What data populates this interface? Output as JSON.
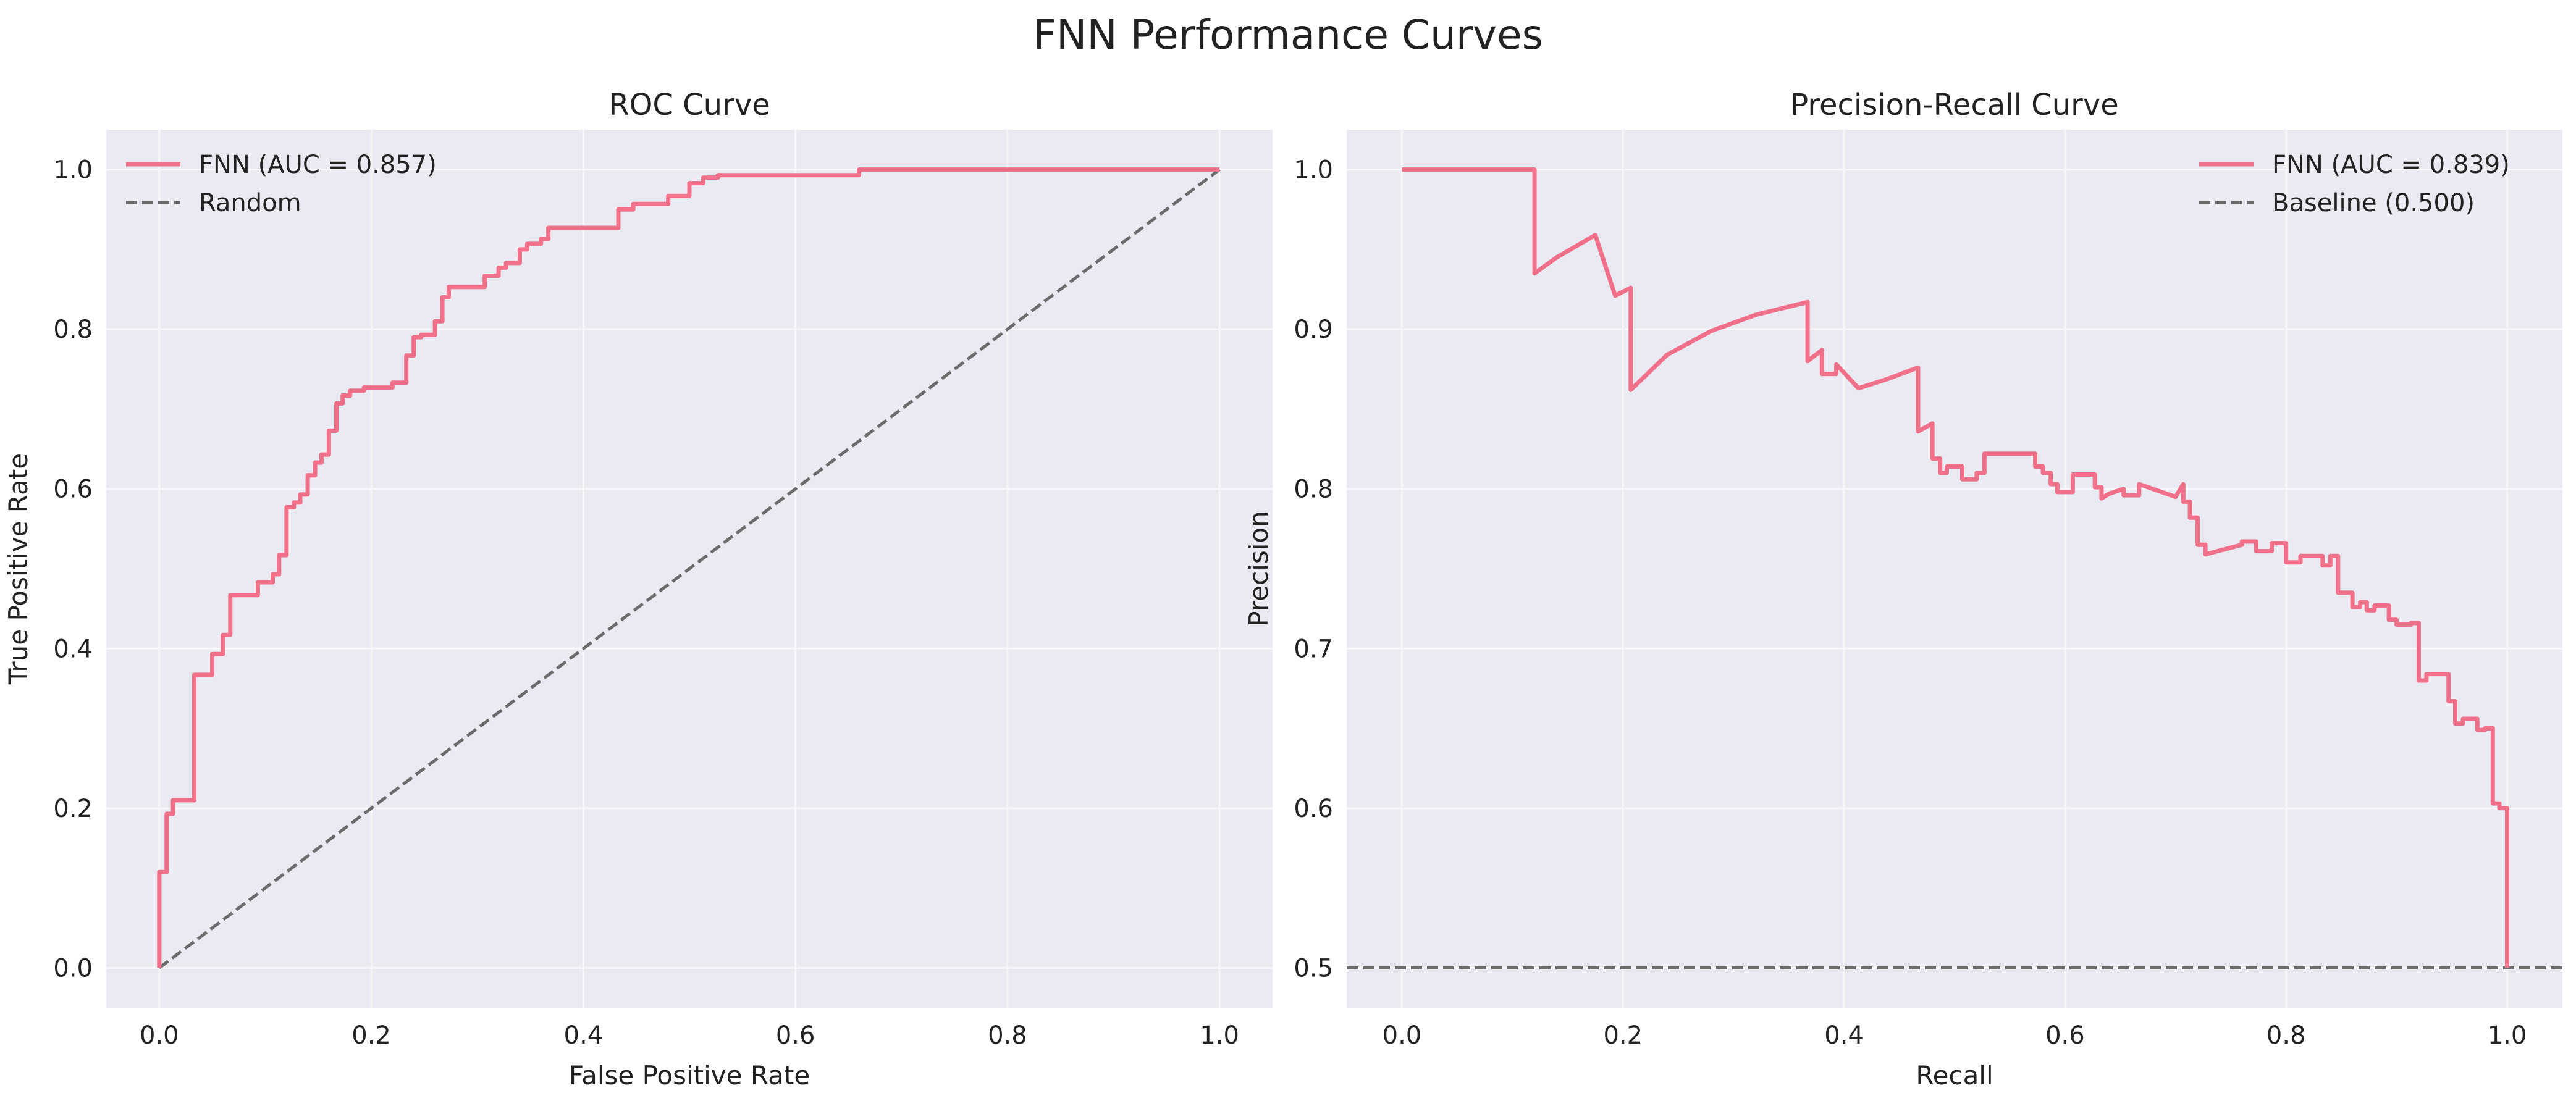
{
  "figure": {
    "title": "FNN Performance Curves"
  },
  "chart_data": [
    {
      "type": "line",
      "title": "ROC Curve",
      "xlabel": "False Positive Rate",
      "ylabel": "True Positive Rate",
      "xlim": [
        -0.05,
        1.05
      ],
      "ylim": [
        -0.05,
        1.05
      ],
      "xticks": [
        0.0,
        0.2,
        0.4,
        0.6,
        0.8,
        1.0
      ],
      "yticks": [
        0.0,
        0.2,
        0.4,
        0.6,
        0.8,
        1.0
      ],
      "xtick_labels": [
        "0.0",
        "0.2",
        "0.4",
        "0.6",
        "0.8",
        "1.0"
      ],
      "ytick_labels": [
        "0.0",
        "0.2",
        "0.4",
        "0.6",
        "0.8",
        "1.0"
      ],
      "grid": true,
      "legend_position": "top-left",
      "series": [
        {
          "name": "FNN (AUC = 0.857)",
          "color": "#f0708a",
          "style": "solid",
          "x": [
            0,
            0,
            0.007,
            0.007,
            0.013,
            0.013,
            0.033,
            0.033,
            0.05,
            0.05,
            0.06,
            0.06,
            0.067,
            0.067,
            0.093,
            0.093,
            0.107,
            0.107,
            0.113,
            0.113,
            0.12,
            0.12,
            0.127,
            0.127,
            0.133,
            0.133,
            0.14,
            0.14,
            0.147,
            0.147,
            0.153,
            0.153,
            0.16,
            0.16,
            0.167,
            0.167,
            0.173,
            0.173,
            0.18,
            0.18,
            0.193,
            0.193,
            0.22,
            0.22,
            0.233,
            0.233,
            0.24,
            0.24,
            0.247,
            0.247,
            0.26,
            0.26,
            0.267,
            0.267,
            0.273,
            0.273,
            0.307,
            0.307,
            0.32,
            0.32,
            0.327,
            0.327,
            0.34,
            0.34,
            0.347,
            0.347,
            0.36,
            0.36,
            0.367,
            0.367,
            0.433,
            0.433,
            0.447,
            0.447,
            0.48,
            0.48,
            0.5,
            0.5,
            0.513,
            0.513,
            0.527,
            0.527,
            0.66,
            0.66,
            1.0
          ],
          "y": [
            0,
            0.12,
            0.12,
            0.193,
            0.193,
            0.21,
            0.21,
            0.367,
            0.367,
            0.393,
            0.393,
            0.417,
            0.417,
            0.467,
            0.467,
            0.483,
            0.483,
            0.493,
            0.493,
            0.517,
            0.517,
            0.577,
            0.577,
            0.583,
            0.583,
            0.593,
            0.593,
            0.617,
            0.617,
            0.633,
            0.633,
            0.643,
            0.643,
            0.673,
            0.673,
            0.707,
            0.707,
            0.717,
            0.717,
            0.723,
            0.723,
            0.727,
            0.727,
            0.733,
            0.733,
            0.767,
            0.767,
            0.79,
            0.79,
            0.793,
            0.793,
            0.81,
            0.81,
            0.84,
            0.84,
            0.853,
            0.853,
            0.867,
            0.867,
            0.877,
            0.877,
            0.883,
            0.883,
            0.9,
            0.9,
            0.907,
            0.907,
            0.913,
            0.913,
            0.927,
            0.927,
            0.95,
            0.95,
            0.957,
            0.957,
            0.967,
            0.967,
            0.983,
            0.983,
            0.99,
            0.99,
            0.993,
            0.993,
            1.0,
            1.0
          ]
        },
        {
          "name": "Random",
          "color": "#6b6b6b",
          "style": "dashed",
          "x": [
            0,
            1
          ],
          "y": [
            0,
            1
          ]
        }
      ]
    },
    {
      "type": "line",
      "title": "Precision-Recall Curve",
      "xlabel": "Recall",
      "ylabel": "Precision",
      "xlim": [
        -0.05,
        1.05
      ],
      "ylim": [
        0.475,
        1.025
      ],
      "xticks": [
        0.0,
        0.2,
        0.4,
        0.6,
        0.8,
        1.0
      ],
      "yticks": [
        0.5,
        0.6,
        0.7,
        0.8,
        0.9,
        1.0
      ],
      "xtick_labels": [
        "0.0",
        "0.2",
        "0.4",
        "0.6",
        "0.8",
        "1.0"
      ],
      "ytick_labels": [
        "0.5",
        "0.6",
        "0.7",
        "0.8",
        "0.9",
        "1.0"
      ],
      "grid": true,
      "legend_position": "top-right",
      "series": [
        {
          "name": "FNN (AUC = 0.839)",
          "color": "#f0708a",
          "style": "solid",
          "x": [
            0,
            0.12,
            0.12,
            0.14,
            0.16,
            0.175,
            0.193,
            0.193,
            0.207,
            0.207,
            0.24,
            0.28,
            0.32,
            0.367,
            0.367,
            0.38,
            0.38,
            0.393,
            0.393,
            0.413,
            0.413,
            0.44,
            0.467,
            0.467,
            0.48,
            0.48,
            0.487,
            0.487,
            0.493,
            0.493,
            0.507,
            0.507,
            0.52,
            0.52,
            0.527,
            0.527,
            0.573,
            0.573,
            0.58,
            0.58,
            0.587,
            0.587,
            0.593,
            0.593,
            0.607,
            0.607,
            0.627,
            0.627,
            0.633,
            0.633,
            0.64,
            0.653,
            0.653,
            0.667,
            0.667,
            0.7,
            0.707,
            0.707,
            0.713,
            0.713,
            0.72,
            0.72,
            0.727,
            0.727,
            0.76,
            0.76,
            0.773,
            0.773,
            0.787,
            0.787,
            0.8,
            0.8,
            0.813,
            0.813,
            0.833,
            0.833,
            0.84,
            0.84,
            0.847,
            0.847,
            0.86,
            0.86,
            0.867,
            0.867,
            0.873,
            0.873,
            0.88,
            0.88,
            0.893,
            0.893,
            0.9,
            0.9,
            0.913,
            0.913,
            0.92,
            0.92,
            0.927,
            0.927,
            0.947,
            0.947,
            0.953,
            0.953,
            0.96,
            0.96,
            0.973,
            0.973,
            0.98,
            0.98,
            0.987,
            0.987,
            0.993,
            0.993,
            1.0,
            1.0
          ],
          "y": [
            1.0,
            1.0,
            0.935,
            0.945,
            0.953,
            0.959,
            0.921,
            0.921,
            0.926,
            0.862,
            0.884,
            0.899,
            0.909,
            0.917,
            0.88,
            0.887,
            0.872,
            0.872,
            0.878,
            0.863,
            0.863,
            0.869,
            0.876,
            0.836,
            0.841,
            0.819,
            0.819,
            0.81,
            0.81,
            0.814,
            0.814,
            0.806,
            0.806,
            0.81,
            0.81,
            0.822,
            0.822,
            0.814,
            0.814,
            0.81,
            0.81,
            0.803,
            0.803,
            0.798,
            0.798,
            0.809,
            0.809,
            0.801,
            0.801,
            0.794,
            0.797,
            0.8,
            0.796,
            0.796,
            0.803,
            0.795,
            0.803,
            0.792,
            0.792,
            0.782,
            0.782,
            0.765,
            0.765,
            0.759,
            0.765,
            0.767,
            0.767,
            0.761,
            0.761,
            0.766,
            0.766,
            0.754,
            0.754,
            0.758,
            0.758,
            0.752,
            0.752,
            0.758,
            0.758,
            0.735,
            0.735,
            0.726,
            0.726,
            0.729,
            0.729,
            0.724,
            0.724,
            0.727,
            0.727,
            0.718,
            0.718,
            0.715,
            0.715,
            0.716,
            0.716,
            0.68,
            0.68,
            0.684,
            0.684,
            0.667,
            0.667,
            0.653,
            0.653,
            0.656,
            0.656,
            0.649,
            0.649,
            0.65,
            0.65,
            0.603,
            0.603,
            0.6,
            0.6,
            0.5
          ]
        },
        {
          "name": "Baseline (0.500)",
          "color": "#6b6b6b",
          "style": "dashed",
          "x": [
            -0.05,
            1.05
          ],
          "y": [
            0.5,
            0.5
          ]
        }
      ]
    }
  ]
}
